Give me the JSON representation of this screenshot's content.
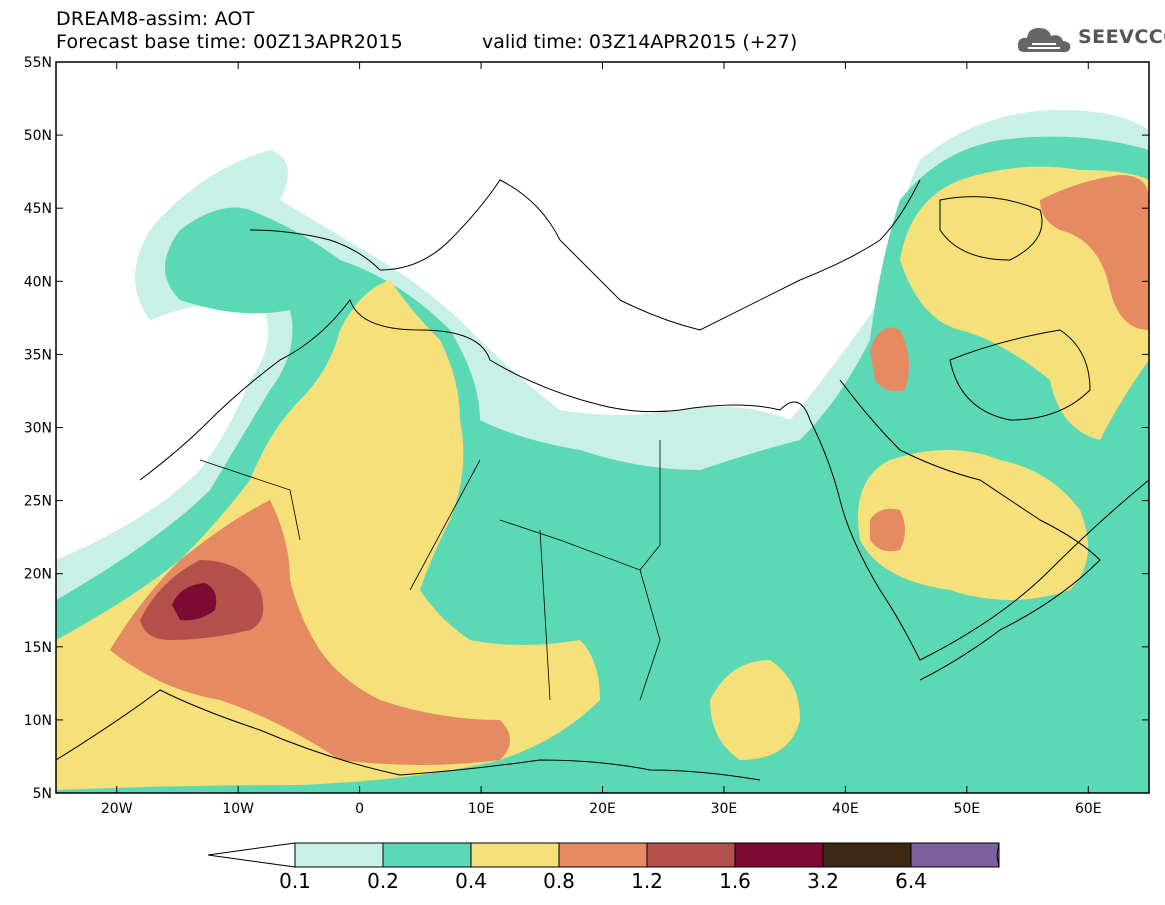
{
  "header": {
    "line1": "DREAM8-assim: AOT",
    "base_time": "Forecast base time: 00Z13APR2015",
    "valid_time": "valid time: 03Z14APR2015 (+27)"
  },
  "logo": {
    "text": "SEEVCCC",
    "icon": "cloud-icon"
  },
  "map": {
    "lat_labels": [
      "55N",
      "50N",
      "45N",
      "40N",
      "35N",
      "30N",
      "25N",
      "20N",
      "15N",
      "10N",
      "5N"
    ],
    "lon_labels": [
      "20W",
      "10W",
      "0",
      "10E",
      "20E",
      "30E",
      "40E",
      "50E",
      "60E"
    ],
    "lat_range": [
      5,
      55
    ],
    "lon_range": [
      -25,
      65
    ]
  },
  "colorbar": {
    "labels": [
      "0.1",
      "0.2",
      "0.4",
      "0.8",
      "1.2",
      "1.6",
      "3.2",
      "6.4"
    ],
    "colors": [
      "#ffffff",
      "#c8f0e6",
      "#5ad9b4",
      "#f5e07a",
      "#e68a64",
      "#b4504b",
      "#7d0a32",
      "#3c2814",
      "#7e5fa0"
    ],
    "underflow_color": "#ffffff",
    "overflow_color": "#8c64a0"
  }
}
